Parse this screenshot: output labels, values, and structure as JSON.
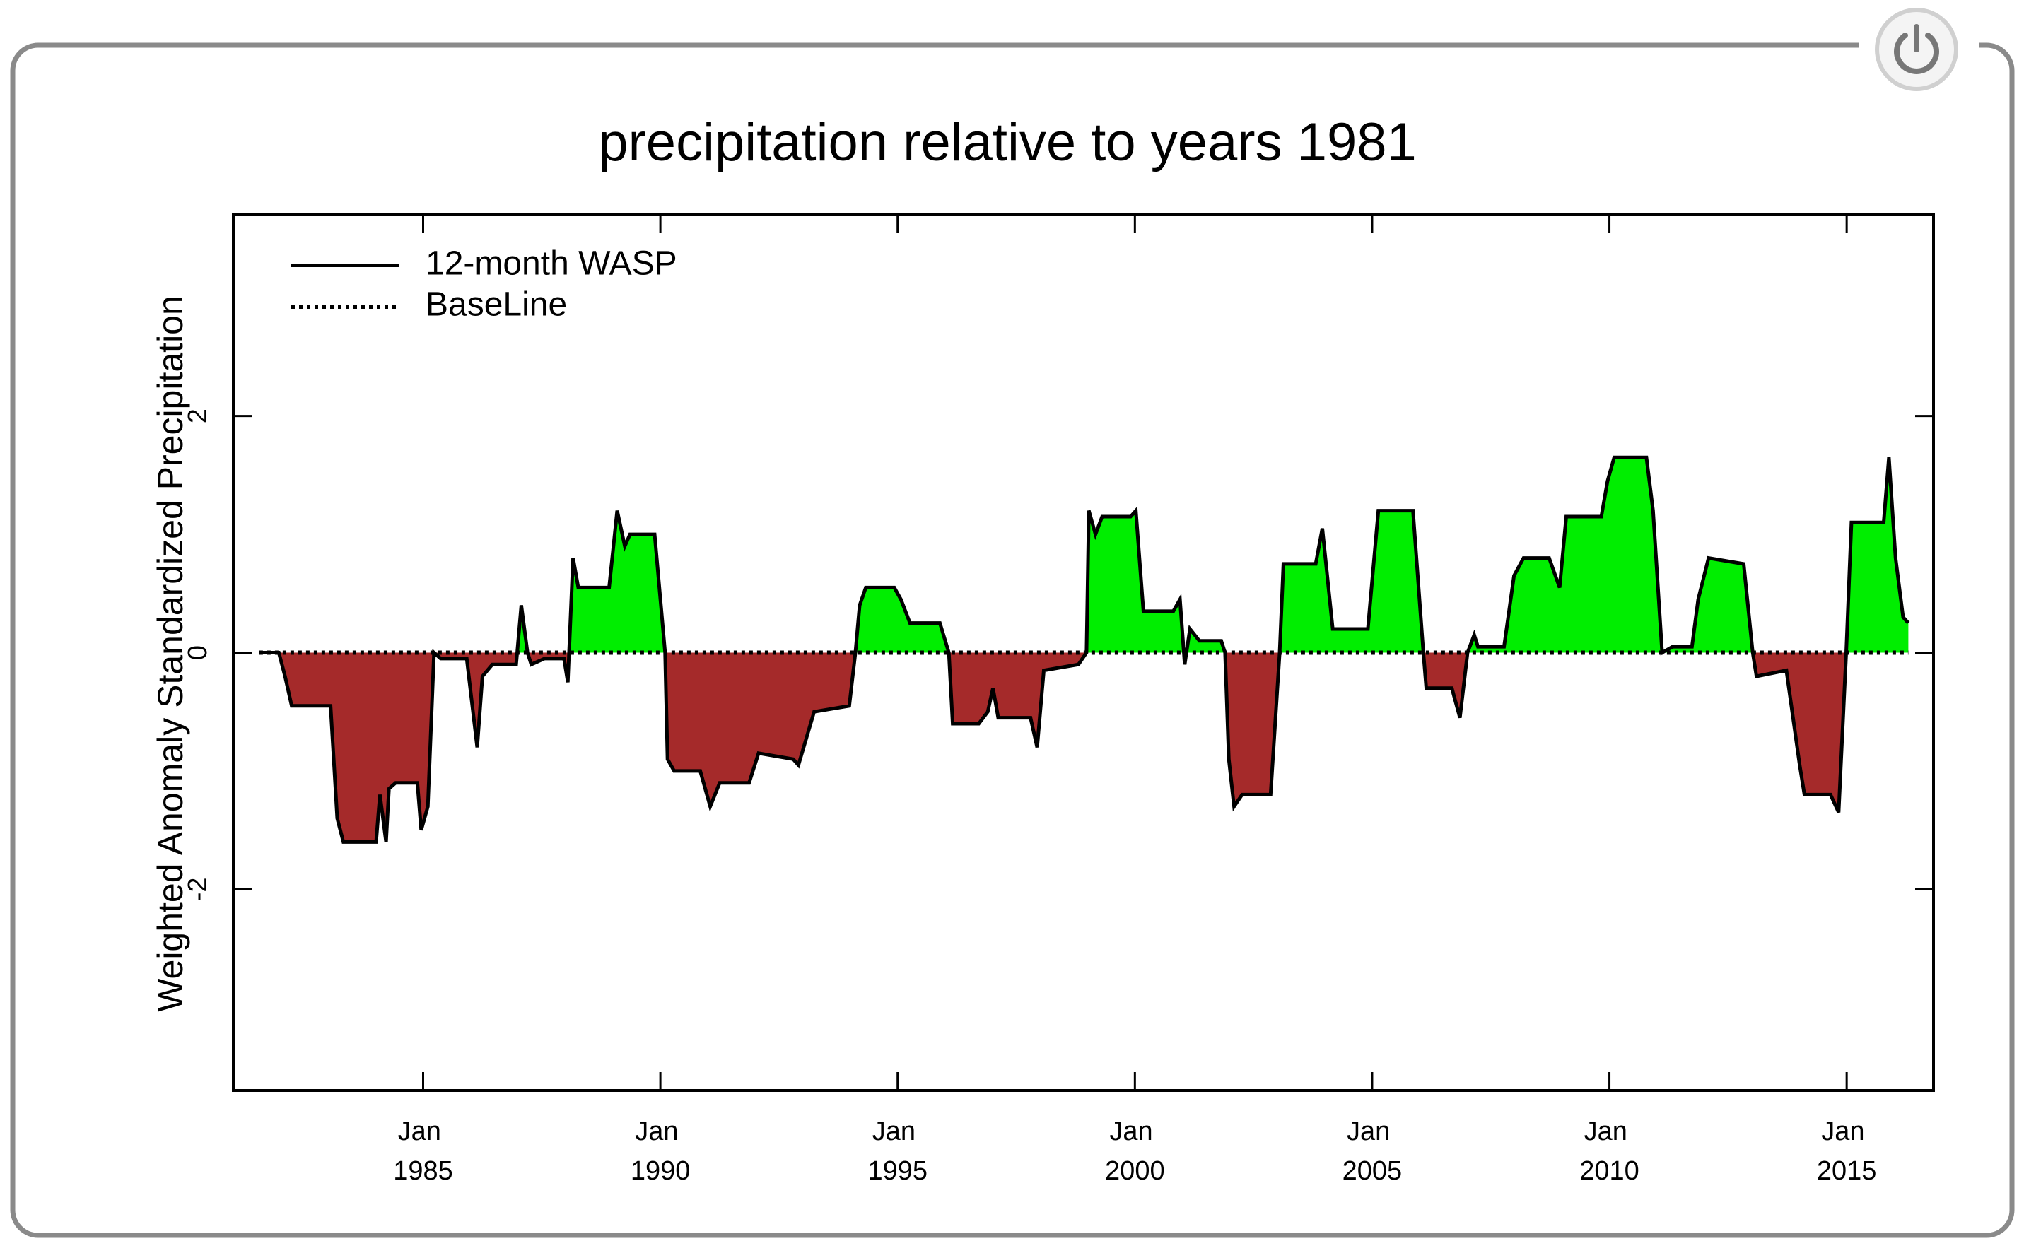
{
  "chart_data": {
    "type": "line",
    "title": "precipitation relative to years 1981",
    "y_label": "Weighted Anomaly Standardized Precipitation",
    "x": [
      1981.55,
      1981.96,
      1982.09,
      1982.23,
      1983.05,
      1983.19,
      1983.32,
      1984.01,
      1984.09,
      1984.22,
      1984.28,
      1984.42,
      1984.88,
      1984.96,
      1985.1,
      1985.23,
      1985.37,
      1985.92,
      1986.14,
      1986.25,
      1986.46,
      1986.96,
      1987.07,
      1987.2,
      1987.28,
      1987.56,
      1987.97,
      1988.05,
      1988.16,
      1988.27,
      1988.92,
      1989.09,
      1989.25,
      1989.36,
      1989.88,
      1990.1,
      1990.15,
      1990.29,
      1990.84,
      1991.05,
      1991.25,
      1991.87,
      1992.07,
      1992.8,
      1992.91,
      1993.24,
      1993.98,
      1994.11,
      1994.2,
      1994.33,
      1994.93,
      1995.07,
      1995.26,
      1995.89,
      1996.08,
      1996.16,
      1996.71,
      1996.9,
      1997.01,
      1997.12,
      1997.8,
      1997.94,
      1998.08,
      1998.81,
      1998.98,
      1999.03,
      1999.17,
      1999.31,
      1999.91,
      2000.02,
      2000.18,
      2000.81,
      2000.95,
      2001.05,
      2001.16,
      2001.36,
      2001.82,
      2001.9,
      2001.98,
      2002.09,
      2002.26,
      2002.86,
      2003.05,
      2003.13,
      2003.81,
      2003.95,
      2004.17,
      2004.91,
      2005.13,
      2005.86,
      2006.08,
      2006.14,
      2006.68,
      2006.85,
      2007.01,
      2007.15,
      2007.23,
      2007.78,
      2007.99,
      2008.19,
      2008.73,
      2008.95,
      2009.09,
      2009.83,
      2009.96,
      2010.1,
      2010.78,
      2010.92,
      2011.11,
      2011.33,
      2011.74,
      2011.87,
      2012.09,
      2012.83,
      2013.02,
      2013.1,
      2013.73,
      2014.01,
      2014.11,
      2014.66,
      2014.83,
      2014.99,
      2015.1,
      2015.78,
      2015.89,
      2016.03,
      2016.19,
      2016.3
    ],
    "series": [
      {
        "name": "12-month WASP",
        "color": "#000000",
        "style": "solid",
        "values": [
          0,
          0,
          -0.2,
          -0.45,
          -0.45,
          -1.4,
          -1.6,
          -1.6,
          -1.2,
          -1.6,
          -1.15,
          -1.1,
          -1.1,
          -1.5,
          -1.3,
          0,
          -0.05,
          -0.05,
          -0.8,
          -0.2,
          -0.1,
          -0.1,
          0.4,
          0,
          -0.1,
          -0.05,
          -0.05,
          -0.25,
          0.8,
          0.55,
          0.55,
          1.2,
          0.9,
          1.0,
          1.0,
          0,
          -0.9,
          -1.0,
          -1.0,
          -1.3,
          -1.1,
          -1.1,
          -0.85,
          -0.9,
          -0.95,
          -0.5,
          -0.45,
          0,
          0.4,
          0.55,
          0.55,
          0.45,
          0.25,
          0.25,
          0,
          -0.6,
          -0.6,
          -0.5,
          -0.3,
          -0.55,
          -0.55,
          -0.8,
          -0.15,
          -0.1,
          0,
          1.2,
          1.0,
          1.15,
          1.15,
          1.2,
          0.35,
          0.35,
          0.45,
          -0.1,
          0.2,
          0.1,
          0.1,
          0,
          -0.9,
          -1.3,
          -1.2,
          -1.2,
          0,
          0.75,
          0.75,
          1.05,
          0.2,
          0.2,
          1.2,
          1.2,
          0,
          -0.3,
          -0.3,
          -0.55,
          0,
          0.15,
          0.05,
          0.05,
          0.65,
          0.8,
          0.8,
          0.55,
          1.15,
          1.15,
          1.45,
          1.65,
          1.65,
          1.2,
          0,
          0.05,
          0.05,
          0.45,
          0.8,
          0.75,
          0,
          -0.2,
          -0.15,
          -0.95,
          -1.2,
          -1.2,
          -1.35,
          0,
          1.1,
          1.1,
          1.65,
          0.8,
          0.3,
          0.25
        ]
      },
      {
        "name": "BaseLine",
        "color": "#000000",
        "style": "dotted",
        "x": [
          1981.55,
          2016.3
        ],
        "values": [
          0,
          0
        ]
      }
    ],
    "positive_color": "#00ee00",
    "negative_color": "#a52a2a",
    "xlim": [
      1981.0,
      2016.83
    ],
    "xticks": [
      {
        "value": 1985,
        "label": "Jan 1985"
      },
      {
        "value": 1990,
        "label": "Jan 1990"
      },
      {
        "value": 1995,
        "label": "Jan 1995"
      },
      {
        "value": 2000,
        "label": "Jan 2000"
      },
      {
        "value": 2005,
        "label": "Jan 2005"
      },
      {
        "value": 2010,
        "label": "Jan 2010"
      },
      {
        "value": 2015,
        "label": "Jan 2015"
      }
    ],
    "ylim": [
      -3.7,
      3.7
    ],
    "yticks": [
      -2,
      0,
      2
    ],
    "legend": "upper left"
  }
}
